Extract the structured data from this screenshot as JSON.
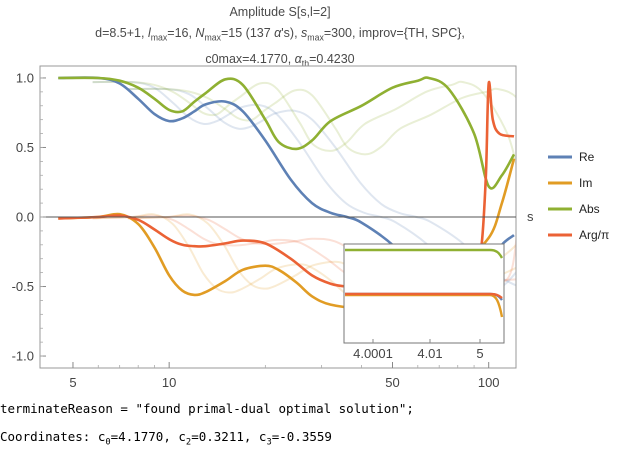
{
  "title": {
    "line1": "Amplitude S[s,l=2]",
    "line2": "d=8.5+1, lmax=16, Nmax=15 (137 α's), smax=300, improv={TH, SPC},",
    "line3": "c0max=4.1770, αth=0.4230"
  },
  "legend": [
    {
      "name": "Re",
      "color": "#5E81B5"
    },
    {
      "name": "Im",
      "color": "#E19C24"
    },
    {
      "name": "Abs",
      "color": "#8FB032"
    },
    {
      "name": "Arg/π",
      "color": "#EB6235"
    }
  ],
  "chart_data": {
    "type": "line",
    "xscale": "log",
    "xlabel": "s",
    "ylabel": "",
    "xlim": [
      4,
      120
    ],
    "ylim": [
      -1.05,
      1.05
    ],
    "x_ticks": [
      "5",
      "10",
      "50",
      "100"
    ],
    "y_ticks": [
      "1.0",
      "0.5",
      "0.0",
      "-0.5",
      "-1.0"
    ],
    "grid": false,
    "legend_position": "right",
    "series": [
      {
        "name": "Re",
        "color": "#5E81B5",
        "x": [
          4.5,
          6,
          7,
          8,
          9,
          10,
          11,
          12,
          13,
          15,
          17,
          20,
          24,
          28,
          32,
          36,
          40,
          50,
          60,
          80,
          100,
          110,
          120
        ],
        "y": [
          1.0,
          1.0,
          0.96,
          0.85,
          0.74,
          0.69,
          0.71,
          0.76,
          0.81,
          0.83,
          0.76,
          0.55,
          0.27,
          0.1,
          0.03,
          0.0,
          -0.04,
          -0.2,
          -0.4,
          -0.55,
          -0.35,
          -0.2,
          -0.13
        ]
      },
      {
        "name": "Im",
        "color": "#E19C24",
        "x": [
          4.5,
          6,
          7,
          8,
          9,
          10,
          11,
          12,
          13,
          15,
          17,
          20,
          22,
          25,
          28,
          32,
          40,
          50,
          60,
          80,
          100,
          110,
          120
        ],
        "y": [
          -0.01,
          0.0,
          0.02,
          -0.05,
          -0.22,
          -0.42,
          -0.53,
          -0.56,
          -0.54,
          -0.46,
          -0.38,
          -0.35,
          -0.38,
          -0.47,
          -0.57,
          -0.63,
          -0.65,
          -0.6,
          -0.5,
          -0.35,
          -0.15,
          0.1,
          0.42
        ]
      },
      {
        "name": "Abs",
        "color": "#8FB032",
        "x": [
          4.5,
          6,
          7,
          8,
          9,
          10,
          11,
          12,
          13,
          15,
          17,
          20,
          22,
          25,
          28,
          32,
          40,
          50,
          60,
          65,
          75,
          90,
          100,
          110,
          120
        ],
        "y": [
          1.0,
          1.0,
          0.98,
          0.93,
          0.85,
          0.77,
          0.76,
          0.83,
          0.89,
          0.99,
          0.95,
          0.7,
          0.54,
          0.49,
          0.55,
          0.69,
          0.8,
          0.93,
          0.98,
          1.0,
          0.92,
          0.6,
          0.22,
          0.3,
          0.45
        ]
      },
      {
        "name": "Arg/π",
        "color": "#EB6235",
        "x": [
          4.5,
          6,
          7,
          8,
          9,
          10,
          11,
          12,
          13,
          15,
          17,
          20,
          24,
          28,
          32,
          36,
          40,
          50,
          60,
          80,
          90,
          95,
          98,
          100,
          103,
          108,
          120
        ],
        "y": [
          -0.01,
          0.0,
          0.01,
          -0.02,
          -0.09,
          -0.16,
          -0.2,
          -0.21,
          -0.21,
          -0.19,
          -0.17,
          -0.19,
          -0.3,
          -0.42,
          -0.48,
          -0.5,
          -0.5,
          -0.51,
          -0.5,
          -0.48,
          -0.45,
          -0.2,
          0.3,
          0.96,
          0.7,
          0.6,
          0.58
        ]
      }
    ],
    "inset": {
      "x_ticks": [
        "4.0001",
        "4.01",
        "5"
      ],
      "series_names": [
        "Abs",
        "Re",
        "Im",
        "Arg/π"
      ]
    }
  },
  "console": {
    "line1": "terminateReason = \"found primal-dual optimal solution\";",
    "line2": "Coordinates: c0=4.1770, c2=0.3211, c3=-0.3559"
  }
}
